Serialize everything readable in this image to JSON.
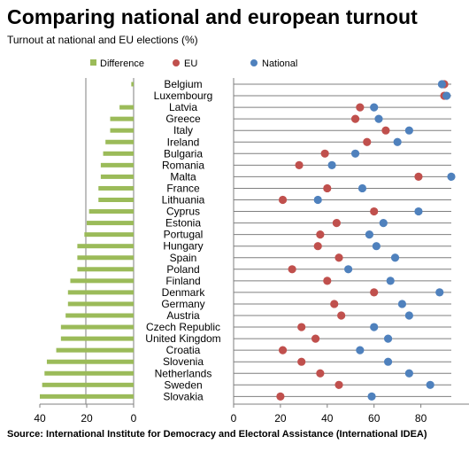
{
  "title": "Comparing national and european turnout",
  "subtitle": "Turnout at national and EU elections (%)",
  "source": "Source: International Institute for Democracy and Electoral Assistance (International IDEA)",
  "legend": [
    "Difference",
    "EU",
    "National"
  ],
  "colors": {
    "difference": "#9bbb59",
    "eu": "#c0504d",
    "national": "#4f81bd",
    "line": "#7f7f7f"
  },
  "chart_data": {
    "type": "bar+dot",
    "categories": [
      "Belgium",
      "Luxembourg",
      "Latvia",
      "Greece",
      "Italy",
      "Ireland",
      "Bulgaria",
      "Romania",
      "Malta",
      "France",
      "Lithuania",
      "Cyprus",
      "Estonia",
      "Portugal",
      "Hungary",
      "Spain",
      "Poland",
      "Finland",
      "Denmark",
      "Germany",
      "Austria",
      "Czech Republic",
      "United Kingdom",
      "Croatia",
      "Slovenia",
      "Netherlands",
      "Sweden",
      "Slovakia"
    ],
    "series": [
      {
        "name": "Difference",
        "values": [
          1,
          0,
          6,
          10,
          10,
          12,
          13,
          14,
          14,
          15,
          15,
          19,
          20,
          21,
          24,
          24,
          24,
          27,
          28,
          28,
          29,
          31,
          31,
          33,
          37,
          38,
          39,
          40
        ]
      },
      {
        "name": "EU",
        "values": [
          90,
          90,
          54,
          52,
          65,
          57,
          39,
          28,
          79,
          40,
          21,
          60,
          44,
          37,
          36,
          45,
          25,
          40,
          60,
          43,
          46,
          29,
          35,
          21,
          29,
          37,
          45,
          20
        ]
      },
      {
        "name": "National",
        "values": [
          89,
          91,
          60,
          62,
          75,
          70,
          52,
          42,
          93,
          55,
          36,
          79,
          64,
          58,
          61,
          69,
          49,
          67,
          88,
          72,
          75,
          60,
          66,
          54,
          66,
          75,
          84,
          59
        ]
      }
    ],
    "left_axis": {
      "ticks": [
        "40",
        "20",
        "0"
      ],
      "range": [
        40,
        0
      ]
    },
    "right_axis": {
      "ticks": [
        "0",
        "20",
        "40",
        "60",
        "80"
      ],
      "range": [
        0,
        100
      ]
    }
  }
}
